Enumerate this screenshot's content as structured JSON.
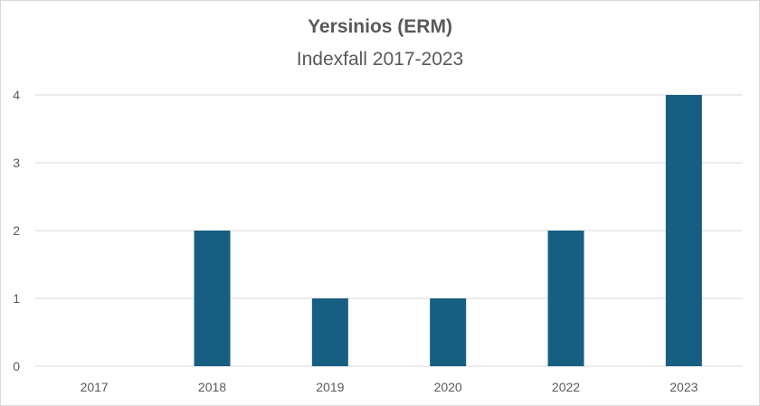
{
  "chart_data": {
    "type": "bar",
    "title": "Yersinios (ERM)",
    "subtitle": "Indexfall 2017-2023",
    "categories": [
      "2017",
      "2018",
      "2019",
      "2020",
      "2022",
      "2023"
    ],
    "values": [
      0,
      2,
      1,
      1,
      2,
      4
    ],
    "ylim": [
      0,
      4
    ],
    "yticks": [
      0,
      1,
      2,
      3,
      4
    ],
    "grid": true,
    "legend": "none",
    "colors": {
      "bar": "#175f82",
      "grid": "#d9d9d9",
      "text": "#595959"
    }
  }
}
